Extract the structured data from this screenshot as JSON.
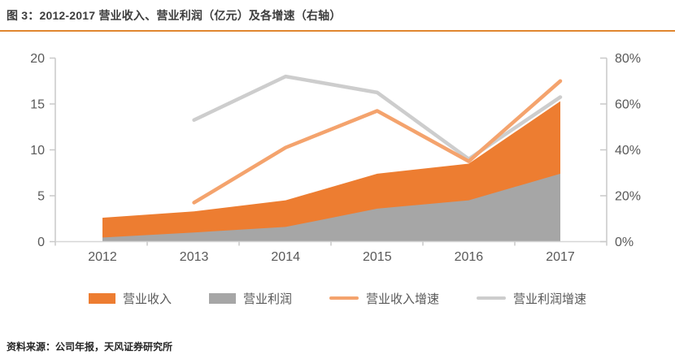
{
  "figure": {
    "title": "图 3：2012-2017 营业收入、营业利润（亿元）及各增速（右轴）",
    "source": "资料来源：公司年报，天风证券研究所",
    "title_rule_color": "#E0862F"
  },
  "colors": {
    "axis_line": "#C9C9C9",
    "baseline": "#D6D6D6",
    "tick_text": "#595959"
  },
  "chart_data": {
    "type": "area+line combo, dual axis",
    "title": "2012-2017 营业收入、营业利润（亿元）及各增速（右轴）",
    "categories": [
      "2012",
      "2013",
      "2014",
      "2015",
      "2016",
      "2017"
    ],
    "left_axis": {
      "min": 0,
      "max": 20,
      "ticks": [
        0,
        5,
        10,
        15,
        20
      ]
    },
    "right_axis": {
      "min": 0,
      "max": 80,
      "ticks": [
        0,
        20,
        40,
        60,
        80
      ],
      "suffix": "%"
    },
    "grid": false,
    "legend_position": "bottom",
    "series": [
      {
        "id": "revenue",
        "name": "营业收入",
        "type": "area",
        "axis": "left",
        "color": "#ED7D31",
        "values": [
          2.6,
          3.3,
          4.5,
          7.4,
          8.5,
          15.3
        ]
      },
      {
        "id": "profit",
        "name": "营业利润",
        "type": "area",
        "axis": "left",
        "color": "#A6A6A6",
        "values": [
          0.45,
          1.0,
          1.6,
          3.6,
          4.5,
          7.4
        ]
      },
      {
        "id": "revenue-growth",
        "name": "营业收入增速",
        "type": "line",
        "axis": "right",
        "color": "#F4A36D",
        "values": [
          null,
          17,
          41,
          57,
          35,
          70
        ]
      },
      {
        "id": "profit-growth",
        "name": "营业利润增速",
        "type": "line",
        "axis": "right",
        "color": "#CDCDCD",
        "values": [
          null,
          53,
          72,
          65,
          36,
          63
        ]
      }
    ]
  }
}
